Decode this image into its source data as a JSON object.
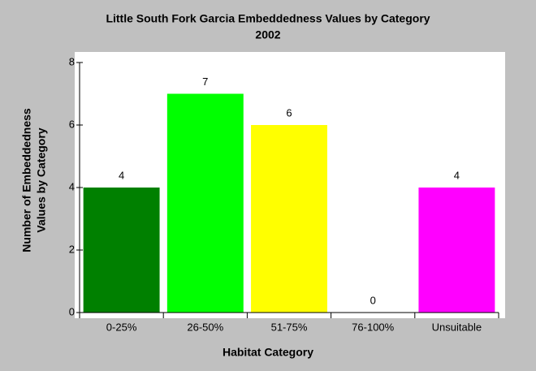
{
  "chart_data": {
    "type": "bar",
    "title": "Little South Fork Garcia Embeddedness Values by Category",
    "subtitle": "2002",
    "x_label": "Habitat Category",
    "y_label": [
      "Number of Embeddedness",
      "Values by Category"
    ],
    "categories": [
      "0-25%",
      "26-50%",
      "51-75%",
      "76-100%",
      "Unsuitable"
    ],
    "values": [
      4,
      7,
      6,
      0,
      4
    ],
    "colors": [
      "#008000",
      "#00ff00",
      "#ffff00",
      "#ffffff",
      "#ff00ff"
    ],
    "ylim": [
      0,
      8
    ],
    "yticks": [
      0,
      2,
      4,
      6,
      8
    ]
  }
}
